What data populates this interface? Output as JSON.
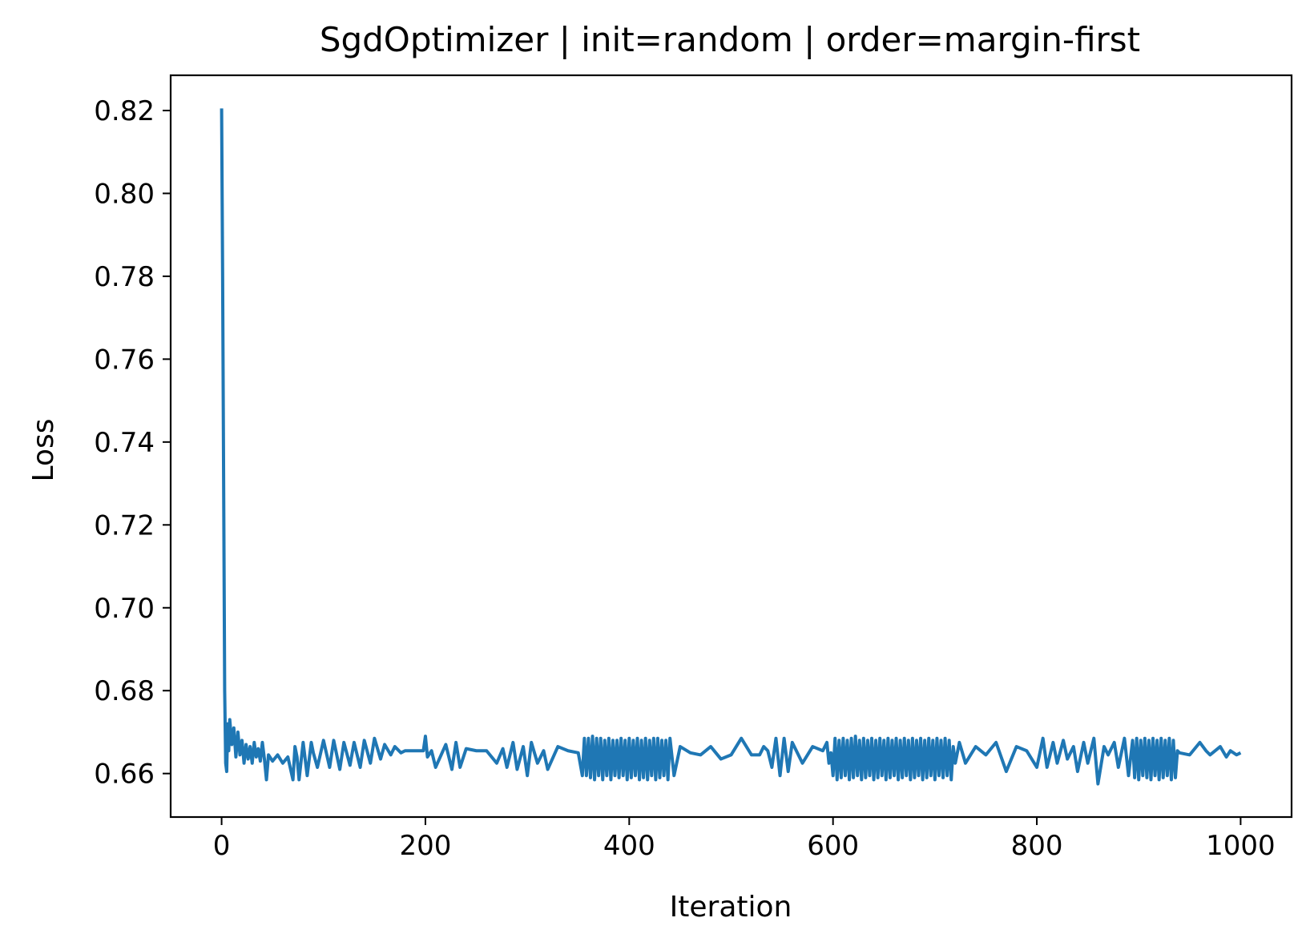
{
  "chart_data": {
    "type": "line",
    "title": "SgdOptimizer | init=random | order=margin-first",
    "xlabel": "Iteration",
    "ylabel": "Loss",
    "xlim": [
      -50,
      1050
    ],
    "ylim": [
      0.6495,
      0.8285
    ],
    "xticks": [
      0,
      200,
      400,
      600,
      800,
      1000
    ],
    "xtick_labels": [
      "0",
      "200",
      "400",
      "600",
      "800",
      "1000"
    ],
    "yticks": [
      0.66,
      0.68,
      0.7,
      0.72,
      0.74,
      0.76,
      0.78,
      0.8,
      0.82
    ],
    "ytick_labels": [
      "0.66",
      "0.68",
      "0.70",
      "0.72",
      "0.74",
      "0.76",
      "0.78",
      "0.80",
      "0.82"
    ],
    "grid": false,
    "color": "#1f77b4",
    "series": [
      {
        "x": [
          0,
          1,
          2,
          3,
          4,
          5,
          6,
          7,
          8,
          10,
          12,
          14,
          16,
          18,
          20,
          22,
          24,
          26,
          28,
          30,
          32,
          34,
          36,
          38,
          40,
          42,
          44,
          46,
          50,
          55,
          60,
          65,
          70,
          72,
          74,
          76,
          80,
          84,
          88,
          90,
          94,
          100,
          106,
          110,
          116,
          120,
          126,
          130,
          136,
          140,
          146,
          150,
          156,
          160,
          166,
          170,
          176,
          180,
          190,
          198,
          200,
          202,
          206,
          210,
          220,
          226,
          230,
          234,
          240,
          250,
          260,
          270,
          276,
          280,
          286,
          290,
          296,
          300,
          304,
          310,
          316,
          320,
          330,
          340,
          350,
          354,
          356,
          358,
          360,
          362,
          364,
          366,
          368,
          370,
          372,
          374,
          376,
          378,
          380,
          382,
          384,
          386,
          388,
          390,
          392,
          394,
          396,
          398,
          400,
          402,
          404,
          406,
          408,
          410,
          412,
          414,
          416,
          418,
          420,
          422,
          424,
          426,
          428,
          430,
          432,
          434,
          436,
          438,
          440,
          444,
          450,
          460,
          470,
          480,
          490,
          500,
          510,
          520,
          528,
          532,
          536,
          540,
          544,
          548,
          552,
          556,
          560,
          570,
          580,
          590,
          594,
          596,
          598,
          600,
          602,
          604,
          606,
          608,
          610,
          612,
          614,
          616,
          618,
          620,
          622,
          624,
          626,
          628,
          630,
          632,
          634,
          636,
          638,
          640,
          642,
          644,
          646,
          648,
          650,
          652,
          654,
          656,
          658,
          660,
          662,
          664,
          666,
          668,
          670,
          672,
          674,
          676,
          678,
          680,
          682,
          684,
          686,
          688,
          690,
          692,
          694,
          696,
          698,
          700,
          702,
          704,
          706,
          708,
          710,
          712,
          714,
          716,
          718,
          720,
          724,
          730,
          740,
          750,
          760,
          770,
          780,
          790,
          800,
          806,
          810,
          816,
          820,
          826,
          830,
          836,
          840,
          846,
          850,
          856,
          860,
          866,
          870,
          876,
          880,
          886,
          890,
          894,
          896,
          898,
          900,
          902,
          904,
          906,
          908,
          910,
          912,
          914,
          916,
          918,
          920,
          922,
          924,
          926,
          928,
          930,
          932,
          934,
          936,
          938,
          940,
          950,
          960,
          966,
          970,
          980,
          986,
          990,
          996,
          1000
        ],
        "y": [
          0.8205,
          0.78,
          0.73,
          0.68,
          0.6625,
          0.6605,
          0.672,
          0.6655,
          0.673,
          0.667,
          0.671,
          0.664,
          0.67,
          0.6645,
          0.668,
          0.6625,
          0.667,
          0.6635,
          0.6665,
          0.6625,
          0.6675,
          0.664,
          0.666,
          0.663,
          0.6675,
          0.6635,
          0.6585,
          0.6645,
          0.663,
          0.6645,
          0.6625,
          0.664,
          0.6585,
          0.6665,
          0.664,
          0.6585,
          0.6675,
          0.6595,
          0.6675,
          0.665,
          0.6615,
          0.668,
          0.6615,
          0.668,
          0.661,
          0.6675,
          0.662,
          0.6675,
          0.6615,
          0.668,
          0.6625,
          0.6685,
          0.6635,
          0.667,
          0.6645,
          0.6665,
          0.665,
          0.6655,
          0.6655,
          0.6655,
          0.669,
          0.664,
          0.6655,
          0.6615,
          0.667,
          0.661,
          0.6675,
          0.6615,
          0.666,
          0.6655,
          0.6655,
          0.6625,
          0.666,
          0.6615,
          0.6675,
          0.661,
          0.6665,
          0.6595,
          0.6675,
          0.6625,
          0.6655,
          0.661,
          0.6665,
          0.6655,
          0.665,
          0.6595,
          0.6685,
          0.6595,
          0.6685,
          0.659,
          0.669,
          0.6585,
          0.6685,
          0.6595,
          0.6685,
          0.6585,
          0.668,
          0.6595,
          0.6685,
          0.6585,
          0.668,
          0.6595,
          0.668,
          0.659,
          0.6685,
          0.6595,
          0.668,
          0.6585,
          0.6685,
          0.659,
          0.668,
          0.6595,
          0.6685,
          0.6585,
          0.668,
          0.659,
          0.6685,
          0.6585,
          0.668,
          0.6595,
          0.6685,
          0.6585,
          0.6685,
          0.659,
          0.668,
          0.6595,
          0.668,
          0.6585,
          0.6685,
          0.6595,
          0.6665,
          0.665,
          0.6645,
          0.6665,
          0.6635,
          0.6645,
          0.6685,
          0.6645,
          0.6645,
          0.6665,
          0.6655,
          0.6615,
          0.6685,
          0.6595,
          0.6685,
          0.6605,
          0.6675,
          0.6625,
          0.6665,
          0.6655,
          0.6675,
          0.6625,
          0.665,
          0.6595,
          0.6685,
          0.6585,
          0.668,
          0.659,
          0.6685,
          0.6595,
          0.668,
          0.6585,
          0.6685,
          0.659,
          0.669,
          0.6595,
          0.668,
          0.6585,
          0.6685,
          0.659,
          0.668,
          0.6595,
          0.6685,
          0.6585,
          0.668,
          0.659,
          0.6685,
          0.6595,
          0.668,
          0.6585,
          0.6685,
          0.659,
          0.668,
          0.6595,
          0.6685,
          0.6585,
          0.668,
          0.659,
          0.6685,
          0.6595,
          0.668,
          0.6585,
          0.6685,
          0.659,
          0.668,
          0.6595,
          0.6685,
          0.6585,
          0.668,
          0.659,
          0.6685,
          0.6595,
          0.668,
          0.6585,
          0.6685,
          0.6595,
          0.668,
          0.659,
          0.6685,
          0.6595,
          0.668,
          0.6585,
          0.6665,
          0.6625,
          0.6675,
          0.6625,
          0.6665,
          0.6645,
          0.6675,
          0.6605,
          0.6665,
          0.6655,
          0.6615,
          0.6685,
          0.6615,
          0.6675,
          0.6625,
          0.668,
          0.6635,
          0.6665,
          0.6605,
          0.6675,
          0.6625,
          0.6685,
          0.6575,
          0.6665,
          0.6645,
          0.6675,
          0.6615,
          0.6685,
          0.6595,
          0.668,
          0.659,
          0.6685,
          0.6585,
          0.668,
          0.6595,
          0.6685,
          0.659,
          0.668,
          0.6585,
          0.6685,
          0.6595,
          0.668,
          0.6585,
          0.6685,
          0.659,
          0.668,
          0.6595,
          0.6685,
          0.6585,
          0.668,
          0.659,
          0.6655,
          0.665,
          0.6645,
          0.6675,
          0.6655,
          0.6645,
          0.6665,
          0.664,
          0.6655,
          0.6645,
          0.665
        ]
      }
    ]
  }
}
